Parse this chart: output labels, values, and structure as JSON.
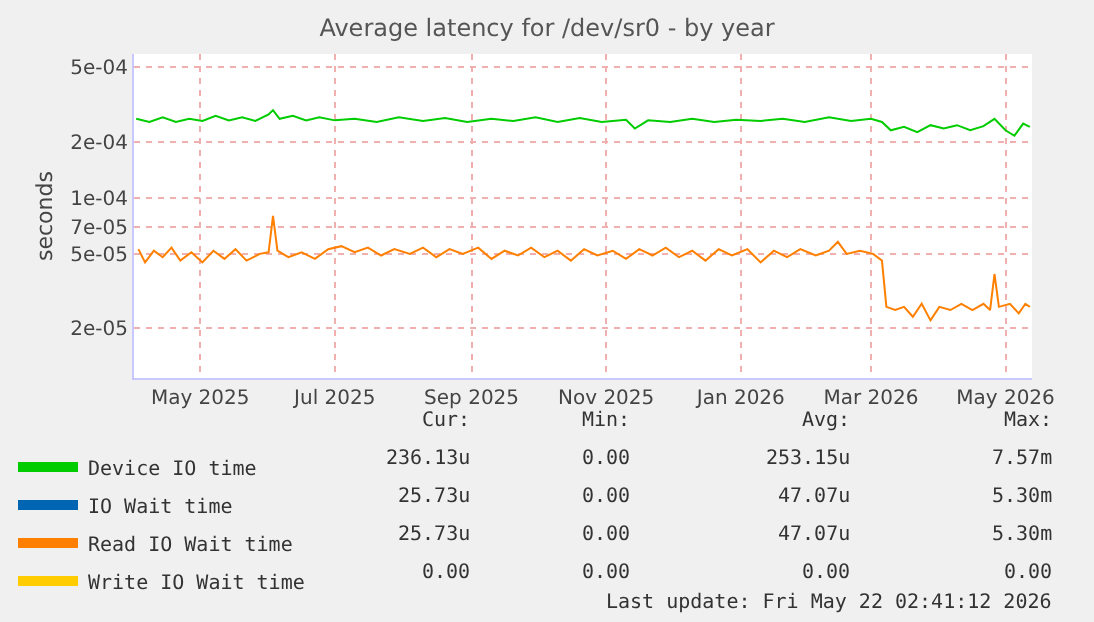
{
  "chart_data": {
    "type": "line",
    "title": "Average latency for /dev/sr0 - by year",
    "ylabel": "seconds",
    "log": "y",
    "grid": true,
    "legend": "bottom left",
    "ylim": [
      1.08e-05,
      0.00059
    ],
    "yticks": [
      {
        "value": 0.0005,
        "label": "5e-04"
      },
      {
        "value": 0.0002,
        "label": "2e-04"
      },
      {
        "value": 0.0001,
        "label": "1e-04"
      },
      {
        "value": 7e-05,
        "label": "7e-05"
      },
      {
        "value": 5e-05,
        "label": "5e-05"
      },
      {
        "value": 2e-05,
        "label": "2e-05"
      }
    ],
    "xlim": [
      "2025-04-01",
      "2026-05-13"
    ],
    "xticks": [
      {
        "value": "2025-05-01",
        "label": "May 2025"
      },
      {
        "value": "2025-07-01",
        "label": "Jul 2025"
      },
      {
        "value": "2025-09-01",
        "label": "Sep 2025"
      },
      {
        "value": "2025-11-01",
        "label": "Nov 2025"
      },
      {
        "value": "2026-01-01",
        "label": "Jan 2026"
      },
      {
        "value": "2026-03-01",
        "label": "Mar 2026"
      },
      {
        "value": "2026-05-01",
        "label": "May 2026"
      }
    ],
    "series": [
      {
        "name": "Device IO time",
        "color": "#00cc00",
        "x": [
          "2025-04-02",
          "2025-04-08",
          "2025-04-14",
          "2025-04-20",
          "2025-04-26",
          "2025-05-02",
          "2025-05-08",
          "2025-05-14",
          "2025-05-20",
          "2025-05-26",
          "2025-06-01",
          "2025-06-03",
          "2025-06-06",
          "2025-06-12",
          "2025-06-18",
          "2025-06-24",
          "2025-07-01",
          "2025-07-10",
          "2025-07-20",
          "2025-07-30",
          "2025-08-10",
          "2025-08-20",
          "2025-08-30",
          "2025-09-10",
          "2025-09-20",
          "2025-09-30",
          "2025-10-10",
          "2025-10-20",
          "2025-10-30",
          "2025-11-10",
          "2025-11-14",
          "2025-11-20",
          "2025-11-30",
          "2025-12-10",
          "2025-12-20",
          "2025-12-30",
          "2026-01-10",
          "2026-01-20",
          "2026-01-30",
          "2026-02-10",
          "2026-02-20",
          "2026-03-01",
          "2026-03-06",
          "2026-03-10",
          "2026-03-16",
          "2026-03-22",
          "2026-03-28",
          "2026-04-03",
          "2026-04-09",
          "2026-04-15",
          "2026-04-21",
          "2026-04-26",
          "2026-05-01",
          "2026-05-05",
          "2026-05-09",
          "2026-05-12"
        ],
        "values": [
          0.000265,
          0.000255,
          0.00027,
          0.000255,
          0.000265,
          0.000258,
          0.000275,
          0.00026,
          0.00027,
          0.000258,
          0.00028,
          0.000295,
          0.000265,
          0.000275,
          0.00026,
          0.00027,
          0.00026,
          0.000265,
          0.000255,
          0.00027,
          0.000258,
          0.000268,
          0.000255,
          0.000265,
          0.000258,
          0.00027,
          0.000255,
          0.000268,
          0.000255,
          0.000262,
          0.000235,
          0.00026,
          0.000255,
          0.000265,
          0.000255,
          0.000262,
          0.000258,
          0.000265,
          0.000255,
          0.00027,
          0.000258,
          0.000265,
          0.000255,
          0.00023,
          0.00024,
          0.000225,
          0.000245,
          0.000235,
          0.000245,
          0.00023,
          0.000242,
          0.000265,
          0.00023,
          0.000215,
          0.00025,
          0.00024
        ]
      },
      {
        "name": "IO Wait time",
        "color": "#0066b3"
      },
      {
        "name": "Read IO Wait time",
        "color": "#ff8000",
        "x": [
          "2025-04-03",
          "2025-04-06",
          "2025-04-10",
          "2025-04-14",
          "2025-04-18",
          "2025-04-22",
          "2025-04-27",
          "2025-05-02",
          "2025-05-07",
          "2025-05-12",
          "2025-05-17",
          "2025-05-22",
          "2025-05-28",
          "2025-06-01",
          "2025-06-03",
          "2025-06-05",
          "2025-06-10",
          "2025-06-16",
          "2025-06-22",
          "2025-06-28",
          "2025-07-04",
          "2025-07-10",
          "2025-07-16",
          "2025-07-22",
          "2025-07-28",
          "2025-08-04",
          "2025-08-10",
          "2025-08-16",
          "2025-08-22",
          "2025-08-28",
          "2025-09-04",
          "2025-09-10",
          "2025-09-16",
          "2025-09-22",
          "2025-09-28",
          "2025-10-04",
          "2025-10-10",
          "2025-10-16",
          "2025-10-22",
          "2025-10-28",
          "2025-11-04",
          "2025-11-10",
          "2025-11-16",
          "2025-11-22",
          "2025-11-28",
          "2025-12-04",
          "2025-12-10",
          "2025-12-16",
          "2025-12-22",
          "2025-12-28",
          "2026-01-04",
          "2026-01-10",
          "2026-01-16",
          "2026-01-22",
          "2026-01-28",
          "2026-02-04",
          "2026-02-10",
          "2026-02-14",
          "2026-02-18",
          "2026-02-24",
          "2026-03-02",
          "2026-03-06",
          "2026-03-08",
          "2026-03-12",
          "2026-03-16",
          "2026-03-20",
          "2026-03-24",
          "2026-03-28",
          "2026-04-01",
          "2026-04-06",
          "2026-04-11",
          "2026-04-16",
          "2026-04-21",
          "2026-04-24",
          "2026-04-26",
          "2026-04-28",
          "2026-05-03",
          "2026-05-07",
          "2026-05-10",
          "2026-05-12"
        ],
        "values": [
          5.3e-05,
          4.5e-05,
          5.2e-05,
          4.8e-05,
          5.4e-05,
          4.6e-05,
          5.1e-05,
          4.5e-05,
          5.2e-05,
          4.7e-05,
          5.3e-05,
          4.6e-05,
          5e-05,
          5.1e-05,
          8e-05,
          5.2e-05,
          4.8e-05,
          5.1e-05,
          4.7e-05,
          5.3e-05,
          5.5e-05,
          5.1e-05,
          5.4e-05,
          4.9e-05,
          5.3e-05,
          5e-05,
          5.4e-05,
          4.8e-05,
          5.3e-05,
          5e-05,
          5.4e-05,
          4.7e-05,
          5.2e-05,
          4.9e-05,
          5.4e-05,
          4.8e-05,
          5.2e-05,
          4.6e-05,
          5.3e-05,
          4.9e-05,
          5.2e-05,
          4.7e-05,
          5.3e-05,
          4.9e-05,
          5.4e-05,
          4.8e-05,
          5.2e-05,
          4.6e-05,
          5.3e-05,
          4.9e-05,
          5.3e-05,
          4.5e-05,
          5.2e-05,
          4.8e-05,
          5.3e-05,
          4.9e-05,
          5.2e-05,
          5.8e-05,
          5e-05,
          5.2e-05,
          5e-05,
          4.6e-05,
          2.6e-05,
          2.5e-05,
          2.6e-05,
          2.3e-05,
          2.7e-05,
          2.2e-05,
          2.6e-05,
          2.5e-05,
          2.7e-05,
          2.5e-05,
          2.7e-05,
          2.5e-05,
          3.9e-05,
          2.6e-05,
          2.7e-05,
          2.4e-05,
          2.7e-05,
          2.6e-05
        ]
      },
      {
        "name": "Write IO Wait time",
        "color": "#ffcc00"
      }
    ],
    "annotations": [
      "Cur:",
      "Min:",
      "Avg:",
      "Max:",
      "236.13u",
      "0.00",
      "253.15u",
      "7.57m",
      "25.73u",
      "0.00",
      "47.07u",
      "5.30m",
      "25.73u",
      "0.00",
      "47.07u",
      "5.30m",
      "0.00",
      "0.00",
      "0.00",
      "0.00",
      "Last update: Fri May 22 02:41:12 2026"
    ]
  }
}
